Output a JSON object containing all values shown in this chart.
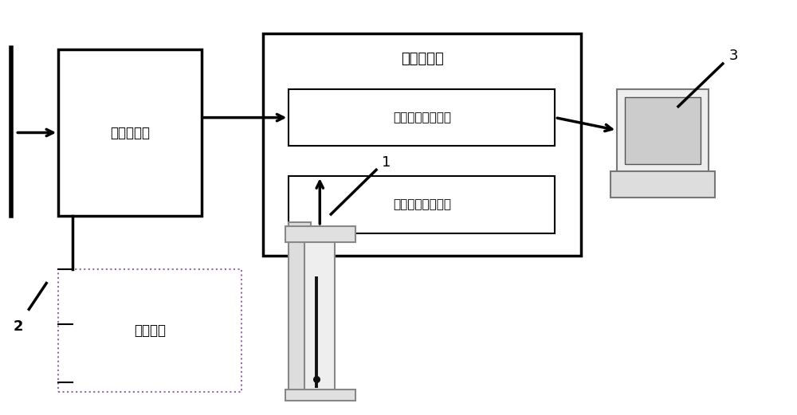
{
  "bg_color": "#ffffff",
  "line_color": "#000000",
  "fig_width": 10.0,
  "fig_height": 5.21,
  "labels": {
    "spindle_driver": "主轴驱动器",
    "signal_collector": "信号采集件",
    "encoder_card": "编码器信号采集卡",
    "analog_card": "模拟量信号采集卡",
    "spindle_system": "主轴系统",
    "label_1": "1",
    "label_2": "2",
    "label_3": "3"
  }
}
